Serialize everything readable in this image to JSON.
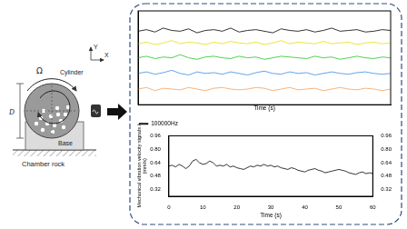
{
  "diagram": {
    "labels": {
      "y_axis": "Y",
      "x_axis": "X",
      "rotation": "Ω",
      "cylinder": "Cylinder",
      "diameter": "D",
      "base": "Base",
      "ground": "Chamber rock"
    }
  },
  "chart_data": [
    {
      "type": "line",
      "x_label": "Time (s)",
      "tick_labels": false,
      "grid": false,
      "x": [
        0,
        2,
        4,
        6,
        8,
        10,
        12,
        14,
        16,
        18,
        20,
        22,
        24,
        26,
        28,
        30,
        32,
        34,
        36,
        38,
        40,
        42,
        44,
        46,
        48,
        50,
        52,
        54,
        56,
        58,
        60
      ],
      "xlim": [
        0,
        60
      ],
      "ylim": [
        0,
        6
      ],
      "series": [
        {
          "color": "#f5a05a",
          "values": [
            1.0,
            1.1,
            0.9,
            1.05,
            1.0,
            0.95,
            1.1,
            1.0,
            0.9,
            1.05,
            1.1,
            1.0,
            0.95,
            1.0,
            1.1,
            1.05,
            0.9,
            1.0,
            1.1,
            0.95,
            1.0,
            1.05,
            0.9,
            1.0,
            1.1,
            1.0,
            0.95,
            1.05,
            1.0,
            0.9,
            1.0
          ]
        },
        {
          "color": "#3c8ede",
          "values": [
            2.0,
            2.1,
            1.95,
            2.05,
            2.2,
            2.0,
            1.9,
            2.1,
            2.0,
            2.05,
            1.95,
            2.1,
            2.0,
            1.9,
            2.05,
            2.15,
            2.0,
            1.95,
            2.1,
            2.0,
            2.05,
            1.9,
            2.0,
            2.1,
            2.0,
            1.95,
            2.05,
            2.1,
            2.0,
            1.95,
            2.0
          ]
        },
        {
          "color": "#22c722",
          "values": [
            3.0,
            3.1,
            2.95,
            3.05,
            3.0,
            3.2,
            3.0,
            2.9,
            3.05,
            3.1,
            3.0,
            2.95,
            3.1,
            3.0,
            3.05,
            2.9,
            3.0,
            3.1,
            3.05,
            3.0,
            2.95,
            3.1,
            3.0,
            3.05,
            2.9,
            3.0,
            3.1,
            3.0,
            2.95,
            3.05,
            3.0
          ]
        },
        {
          "color": "#e8e000",
          "values": [
            3.9,
            4.0,
            3.85,
            3.95,
            4.1,
            3.9,
            4.0,
            3.95,
            3.85,
            4.0,
            3.9,
            4.05,
            3.95,
            3.9,
            4.0,
            3.85,
            3.95,
            4.1,
            3.9,
            4.0,
            3.95,
            3.9,
            4.05,
            3.9,
            3.95,
            4.0,
            3.85,
            3.95,
            4.0,
            3.9,
            3.95
          ]
        },
        {
          "color": "#000000",
          "values": [
            4.7,
            4.8,
            4.65,
            4.9,
            4.75,
            4.7,
            4.85,
            4.6,
            4.75,
            4.8,
            4.7,
            4.9,
            4.65,
            4.75,
            4.8,
            4.7,
            4.6,
            4.85,
            4.75,
            4.7,
            4.8,
            4.65,
            4.75,
            4.9,
            4.7,
            4.75,
            4.8,
            4.65,
            4.7,
            4.8,
            4.75
          ]
        }
      ]
    },
    {
      "type": "line",
      "x_label": "Time (s)",
      "y_label": "Mechanical vibration velocity signals / (mm/s)",
      "legend": "top-left",
      "grid": false,
      "x": [
        0,
        1,
        2,
        3,
        4,
        5,
        6,
        7,
        8,
        9,
        10,
        11,
        12,
        13,
        14,
        15,
        16,
        17,
        18,
        19,
        20,
        21,
        22,
        23,
        24,
        25,
        26,
        27,
        28,
        29,
        30,
        31,
        32,
        33,
        34,
        35,
        36,
        37,
        38,
        39,
        40,
        41,
        42,
        43,
        44,
        45,
        46,
        47,
        48,
        49,
        50,
        51,
        52,
        53,
        54,
        55,
        56,
        57,
        58,
        59,
        60
      ],
      "xlim": [
        0,
        60
      ],
      "xticks": [
        0,
        10,
        20,
        30,
        40,
        50,
        60
      ],
      "ylim": [
        0.24,
        0.96
      ],
      "yticks": [
        0.32,
        0.48,
        0.64,
        {
          "value": 0.8,
          "label": "0.80"
        },
        0.96
      ],
      "y2lim": [
        0.24,
        0.96
      ],
      "y2ticks": [
        0.32,
        0.48,
        0.64,
        {
          "value": 0.8,
          "label": "0.80"
        },
        0.96
      ],
      "series": [
        {
          "name": "100000Hz",
          "color": "#000000",
          "values": [
            0.6,
            0.61,
            0.59,
            0.62,
            0.6,
            0.57,
            0.6,
            0.66,
            0.68,
            0.64,
            0.62,
            0.63,
            0.66,
            0.64,
            0.6,
            0.61,
            0.6,
            0.62,
            0.59,
            0.6,
            0.58,
            0.57,
            0.56,
            0.58,
            0.6,
            0.59,
            0.61,
            0.6,
            0.62,
            0.6,
            0.61,
            0.59,
            0.6,
            0.58,
            0.57,
            0.56,
            0.58,
            0.57,
            0.55,
            0.54,
            0.53,
            0.55,
            0.56,
            0.57,
            0.55,
            0.54,
            0.52,
            0.53,
            0.54,
            0.55,
            0.56,
            0.55,
            0.54,
            0.52,
            0.51,
            0.5,
            0.52,
            0.53,
            0.51,
            0.52,
            0.51
          ]
        }
      ]
    }
  ]
}
